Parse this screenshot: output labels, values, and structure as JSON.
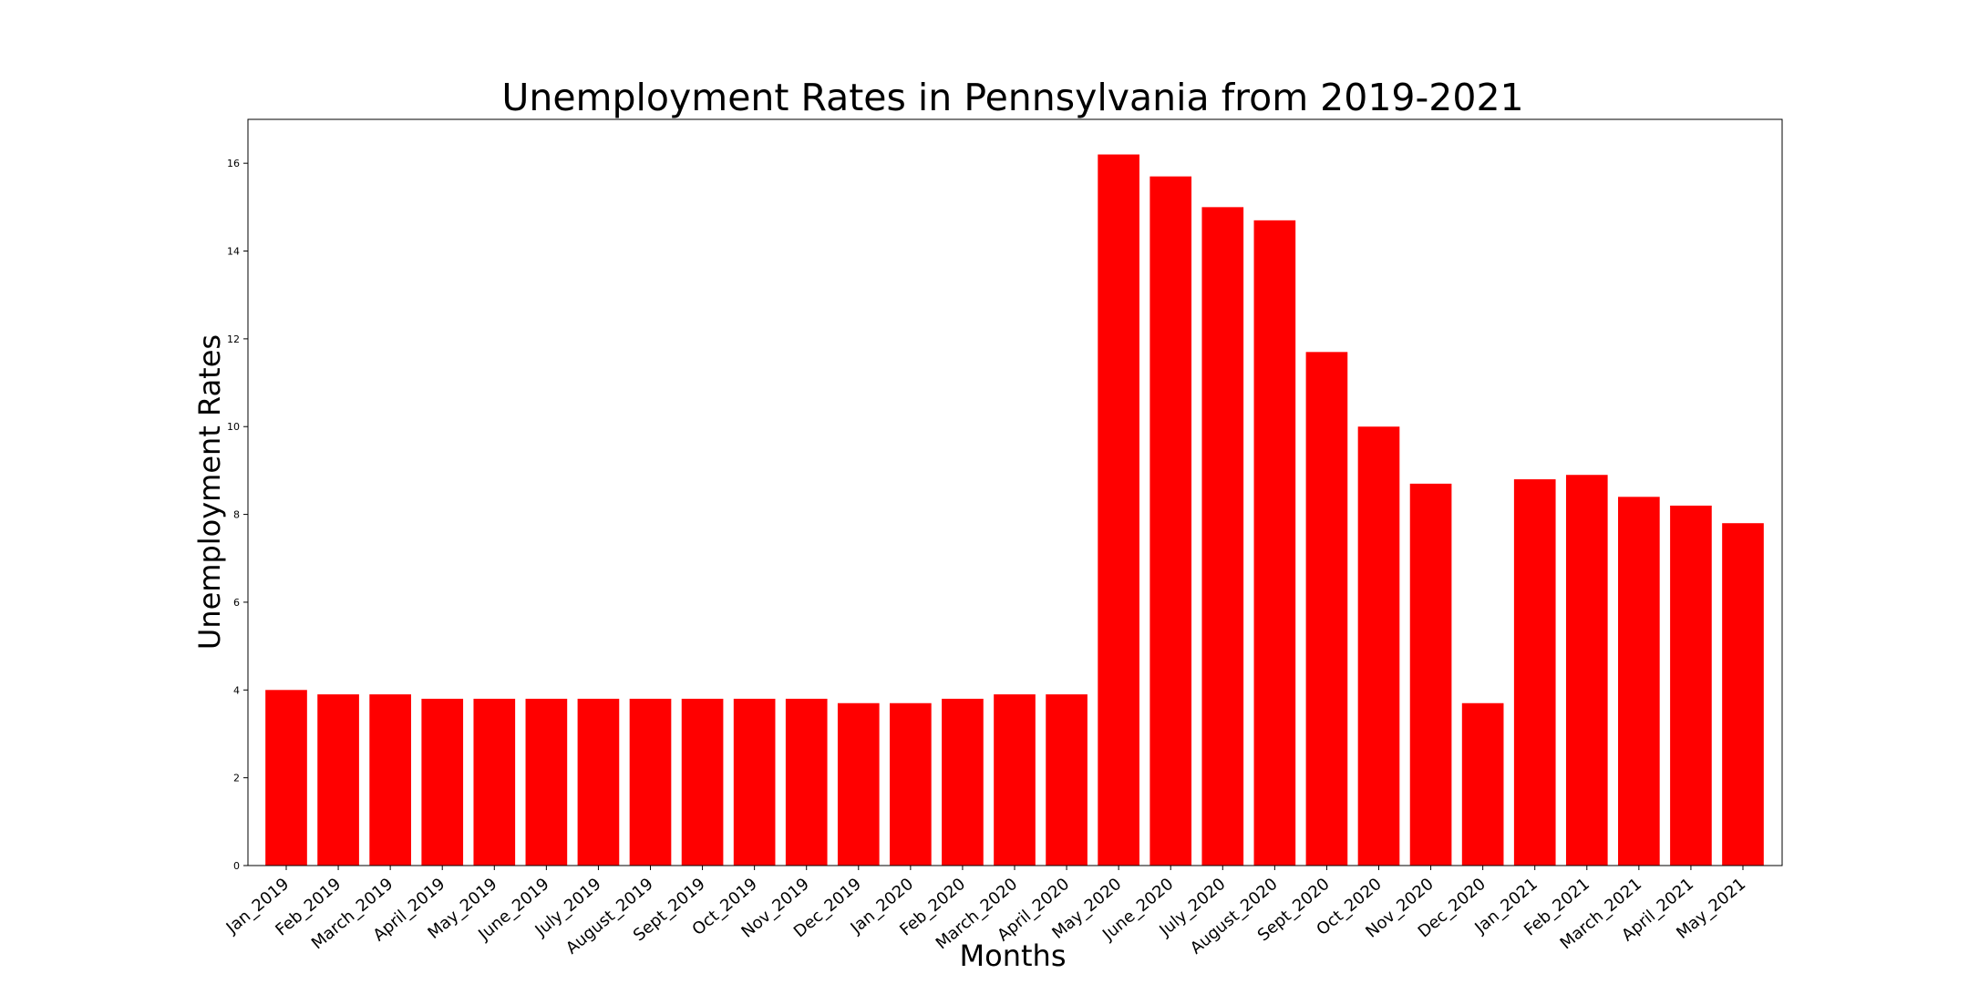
{
  "chart_data": {
    "type": "bar",
    "title": "Unemployment Rates in Pennsylvania from 2019-2021",
    "xlabel": "Months",
    "ylabel": "Unemployment Rates",
    "categories": [
      "Jan_2019",
      "Feb_2019",
      "March_2019",
      "April_2019",
      "May_2019",
      "June_2019",
      "July_2019",
      "August_2019",
      "Sept_2019",
      "Oct_2019",
      "Nov_2019",
      "Dec_2019",
      "Jan_2020",
      "Feb_2020",
      "March_2020",
      "April_2020",
      "May_2020",
      "June_2020",
      "July_2020",
      "August_2020",
      "Sept_2020",
      "Oct_2020",
      "Nov_2020",
      "Dec_2020",
      "Jan_2021",
      "Feb_2021",
      "March_2021",
      "April_2021",
      "May_2021"
    ],
    "values": [
      4.0,
      3.9,
      3.9,
      3.8,
      3.8,
      3.8,
      3.8,
      3.8,
      3.8,
      3.8,
      3.8,
      3.7,
      3.7,
      3.8,
      3.9,
      3.9,
      16.2,
      15.7,
      15.0,
      14.7,
      11.7,
      10.0,
      8.7,
      3.7,
      8.8,
      8.9,
      8.4,
      8.2,
      7.8
    ],
    "ylim": [
      0,
      17
    ],
    "yticks": [
      "0",
      "2",
      "4",
      "6",
      "8",
      "10",
      "12",
      "14",
      "16"
    ],
    "grid": false,
    "legend": "none",
    "bar_color": "#ff0000"
  }
}
